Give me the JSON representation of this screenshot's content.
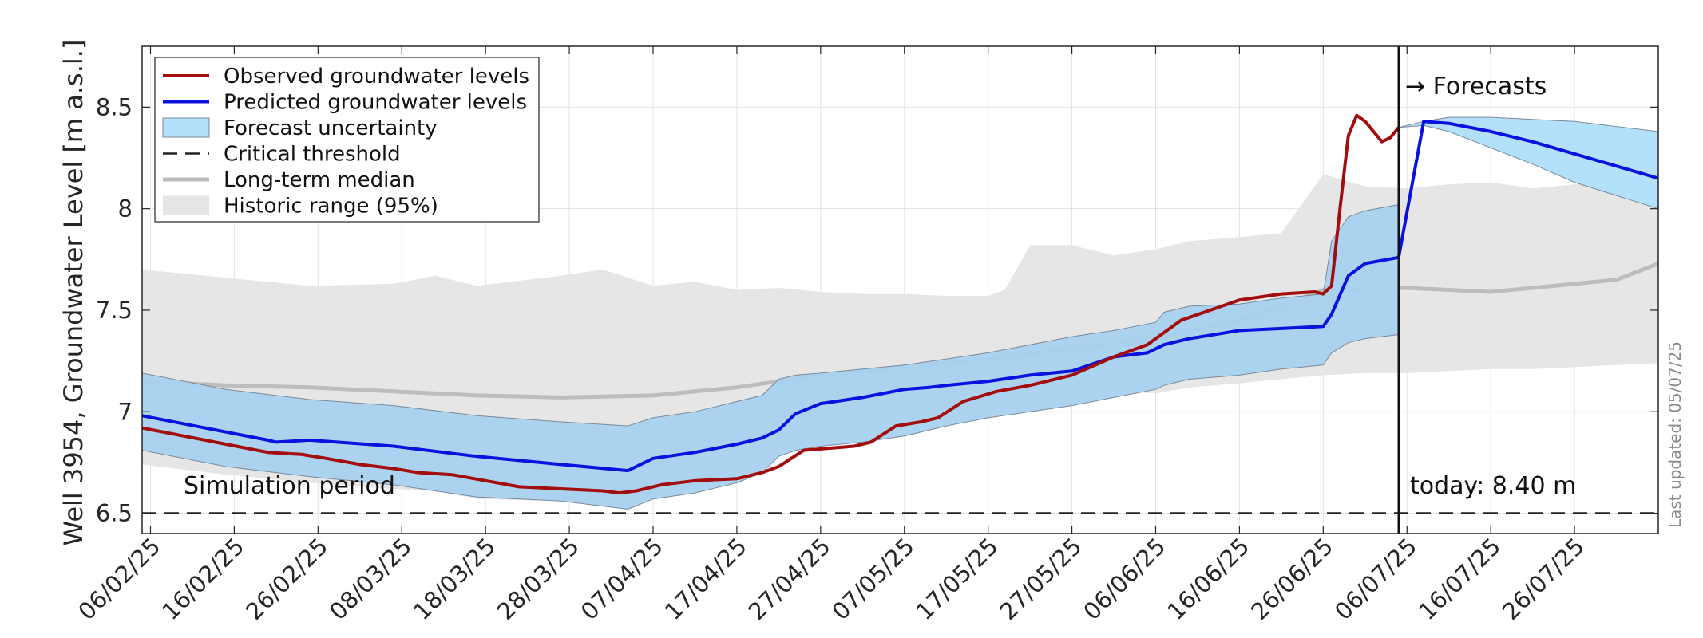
{
  "chart_data": {
    "type": "line",
    "ylabel": "Well 3954, Groundwater Level [m a.s.l.]",
    "ylim": [
      6.4,
      8.8
    ],
    "xlim": [
      "2025-02-05",
      "2025-08-05"
    ],
    "grid": true,
    "legend_position": "top-left",
    "x_ticks": [
      "06/02/25",
      "16/02/25",
      "26/02/25",
      "08/03/25",
      "18/03/25",
      "28/03/25",
      "07/04/25",
      "17/04/25",
      "27/04/25",
      "07/05/25",
      "17/05/25",
      "27/05/25",
      "06/06/25",
      "16/06/25",
      "26/06/25",
      "06/07/25",
      "16/07/25",
      "26/07/25"
    ],
    "y_ticks": [
      6.5,
      7,
      7.5,
      8,
      8.5
    ],
    "y_tick_labels": [
      "6.5",
      "7",
      "7.5",
      "8",
      "8.5"
    ],
    "legend": [
      {
        "label": "Observed groundwater levels",
        "kind": "line",
        "color": "#a30d0d"
      },
      {
        "label": "Predicted groundwater levels",
        "kind": "line",
        "color": "#0a12e0"
      },
      {
        "label": "Forecast uncertainty",
        "kind": "patch",
        "color": "#b3e0fb"
      },
      {
        "label": "Critical threshold",
        "kind": "dashed",
        "color": "#222222"
      },
      {
        "label": "Long-term median",
        "kind": "line",
        "color": "#bdbdbd"
      },
      {
        "label": "Historic range (95%)",
        "kind": "patch",
        "color": "#e6e6e6"
      }
    ],
    "annotations": {
      "simulation": "Simulation period",
      "forecasts": "→ Forecasts",
      "today": "today: 8.40 m",
      "last_updated": "Last updated: 05/07/25"
    },
    "today_date": "2025-07-05",
    "critical_threshold": 6.5,
    "colors": {
      "observed": "#a30d0d",
      "predicted": "#0a12e0",
      "uncertainty_sim": "#a8d2f0",
      "uncertainty_forecast": "#b3e0fb",
      "uncertainty_edge": "#7a8a99",
      "historic": "#e6e6e6",
      "median": "#bdbdbd",
      "threshold": "#222222"
    },
    "historic_range": {
      "x": [
        "2025-02-05",
        "2025-02-15",
        "2025-02-25",
        "2025-03-07",
        "2025-03-12",
        "2025-03-17",
        "2025-03-27",
        "2025-04-01",
        "2025-04-07",
        "2025-04-12",
        "2025-04-17",
        "2025-04-22",
        "2025-04-27",
        "2025-05-02",
        "2025-05-07",
        "2025-05-12",
        "2025-05-17",
        "2025-05-19",
        "2025-05-22",
        "2025-05-27",
        "2025-06-01",
        "2025-06-06",
        "2025-06-10",
        "2025-06-16",
        "2025-06-21",
        "2025-06-26",
        "2025-07-01",
        "2025-07-06",
        "2025-07-11",
        "2025-07-16",
        "2025-07-21",
        "2025-07-26",
        "2025-07-31",
        "2025-08-05"
      ],
      "upper": [
        7.7,
        7.66,
        7.62,
        7.63,
        7.67,
        7.62,
        7.67,
        7.7,
        7.62,
        7.64,
        7.6,
        7.61,
        7.59,
        7.58,
        7.58,
        7.57,
        7.57,
        7.6,
        7.82,
        7.82,
        7.77,
        7.8,
        7.84,
        7.86,
        7.88,
        8.17,
        8.11,
        8.1,
        8.12,
        8.13,
        8.1,
        8.12,
        8.13,
        8.1
      ],
      "lower": [
        6.74,
        6.69,
        6.65,
        6.62,
        6.61,
        6.57,
        6.56,
        6.55,
        6.57,
        6.62,
        6.72,
        6.81,
        6.85,
        6.93,
        6.98,
        7.0,
        7.03,
        7.04,
        7.05,
        7.08,
        7.1,
        7.09,
        7.12,
        7.14,
        7.16,
        7.18,
        7.19,
        7.19,
        7.2,
        7.21,
        7.21,
        7.22,
        7.23,
        7.24
      ]
    },
    "long_term_median": {
      "x": [
        "2025-02-05",
        "2025-02-15",
        "2025-02-25",
        "2025-03-07",
        "2025-03-17",
        "2025-03-27",
        "2025-04-07",
        "2025-04-17",
        "2025-04-27",
        "2025-05-07",
        "2025-05-17",
        "2025-05-27",
        "2025-06-06",
        "2025-06-16",
        "2025-06-21",
        "2025-06-26",
        "2025-07-06",
        "2025-07-11",
        "2025-07-16",
        "2025-07-21",
        "2025-07-26",
        "2025-07-31",
        "2025-08-05"
      ],
      "y": [
        7.15,
        7.13,
        7.12,
        7.1,
        7.08,
        7.07,
        7.08,
        7.12,
        7.18,
        7.22,
        7.26,
        7.31,
        7.36,
        7.45,
        7.52,
        7.6,
        7.61,
        7.6,
        7.59,
        7.61,
        7.63,
        7.65,
        7.73
      ]
    },
    "uncertainty": {
      "x": [
        "2025-02-05",
        "2025-02-15",
        "2025-02-25",
        "2025-03-07",
        "2025-03-17",
        "2025-03-27",
        "2025-04-04",
        "2025-04-07",
        "2025-04-12",
        "2025-04-17",
        "2025-04-20",
        "2025-04-22",
        "2025-04-24",
        "2025-04-27",
        "2025-05-02",
        "2025-05-07",
        "2025-05-12",
        "2025-05-17",
        "2025-05-22",
        "2025-05-27",
        "2025-06-01",
        "2025-06-06",
        "2025-06-07",
        "2025-06-10",
        "2025-06-16",
        "2025-06-21",
        "2025-06-26",
        "2025-06-27",
        "2025-06-29",
        "2025-07-01",
        "2025-07-05"
      ],
      "upper": [
        7.19,
        7.11,
        7.06,
        7.03,
        6.98,
        6.95,
        6.93,
        6.97,
        7.0,
        7.05,
        7.08,
        7.16,
        7.18,
        7.19,
        7.21,
        7.23,
        7.26,
        7.29,
        7.33,
        7.37,
        7.4,
        7.44,
        7.49,
        7.52,
        7.53,
        7.56,
        7.58,
        7.84,
        7.96,
        7.99,
        8.02
      ],
      "lower": [
        6.81,
        6.73,
        6.68,
        6.64,
        6.58,
        6.56,
        6.52,
        6.57,
        6.6,
        6.65,
        6.7,
        6.78,
        6.81,
        6.83,
        6.85,
        6.88,
        6.93,
        6.97,
        7.0,
        7.03,
        7.07,
        7.11,
        7.13,
        7.16,
        7.18,
        7.21,
        7.23,
        7.29,
        7.34,
        7.36,
        7.38
      ]
    },
    "forecast_uncertainty": {
      "x": [
        "2025-07-05",
        "2025-07-08",
        "2025-07-11",
        "2025-07-16",
        "2025-07-21",
        "2025-07-26",
        "2025-08-05"
      ],
      "upper": [
        8.4,
        8.43,
        8.45,
        8.45,
        8.44,
        8.43,
        8.38
      ],
      "lower": [
        8.4,
        8.41,
        8.38,
        8.3,
        8.22,
        8.13,
        8.0
      ]
    },
    "series": [
      {
        "name": "Observed groundwater levels",
        "x": [
          "2025-02-05",
          "2025-02-10",
          "2025-02-15",
          "2025-02-20",
          "2025-02-24",
          "2025-02-27",
          "2025-03-03",
          "2025-03-07",
          "2025-03-10",
          "2025-03-14",
          "2025-03-18",
          "2025-03-22",
          "2025-03-27",
          "2025-04-01",
          "2025-04-03",
          "2025-04-05",
          "2025-04-08",
          "2025-04-12",
          "2025-04-17",
          "2025-04-20",
          "2025-04-22",
          "2025-04-25",
          "2025-05-01",
          "2025-05-03",
          "2025-05-06",
          "2025-05-09",
          "2025-05-11",
          "2025-05-14",
          "2025-05-18",
          "2025-05-22",
          "2025-05-27",
          "2025-06-01",
          "2025-06-05",
          "2025-06-06",
          "2025-06-09",
          "2025-06-16",
          "2025-06-21",
          "2025-06-25",
          "2025-06-26",
          "2025-06-27",
          "2025-06-28",
          "2025-06-29",
          "2025-06-30",
          "2025-07-01",
          "2025-07-02",
          "2025-07-03",
          "2025-07-04",
          "2025-07-05"
        ],
        "y": [
          6.92,
          6.88,
          6.84,
          6.8,
          6.79,
          6.77,
          6.74,
          6.72,
          6.7,
          6.69,
          6.66,
          6.63,
          6.62,
          6.61,
          6.6,
          6.61,
          6.64,
          6.66,
          6.67,
          6.7,
          6.73,
          6.81,
          6.83,
          6.85,
          6.93,
          6.95,
          6.97,
          7.05,
          7.1,
          7.13,
          7.18,
          7.27,
          7.33,
          7.36,
          7.45,
          7.55,
          7.58,
          7.59,
          7.58,
          7.62,
          8.0,
          8.36,
          8.46,
          8.43,
          8.38,
          8.33,
          8.35,
          8.4
        ]
      },
      {
        "name": "Predicted groundwater levels",
        "x": [
          "2025-02-05",
          "2025-02-15",
          "2025-02-20",
          "2025-02-21",
          "2025-02-25",
          "2025-03-07",
          "2025-03-17",
          "2025-03-27",
          "2025-04-04",
          "2025-04-07",
          "2025-04-12",
          "2025-04-17",
          "2025-04-20",
          "2025-04-22",
          "2025-04-24",
          "2025-04-27",
          "2025-05-02",
          "2025-05-07",
          "2025-05-10",
          "2025-05-12",
          "2025-05-17",
          "2025-05-22",
          "2025-05-27",
          "2025-06-01",
          "2025-06-05",
          "2025-06-07",
          "2025-06-10",
          "2025-06-16",
          "2025-06-21",
          "2025-06-26",
          "2025-06-27",
          "2025-06-29",
          "2025-07-01",
          "2025-07-05",
          "2025-07-08",
          "2025-07-11",
          "2025-07-16",
          "2025-07-21",
          "2025-07-26",
          "2025-08-05"
        ],
        "y": [
          6.98,
          6.9,
          6.86,
          6.85,
          6.86,
          6.83,
          6.78,
          6.74,
          6.71,
          6.77,
          6.8,
          6.84,
          6.87,
          6.91,
          6.99,
          7.04,
          7.07,
          7.11,
          7.12,
          7.13,
          7.15,
          7.18,
          7.2,
          7.27,
          7.29,
          7.33,
          7.36,
          7.4,
          7.41,
          7.42,
          7.48,
          7.67,
          7.73,
          7.76,
          8.43,
          8.42,
          8.38,
          8.33,
          8.27,
          8.15
        ]
      }
    ]
  }
}
